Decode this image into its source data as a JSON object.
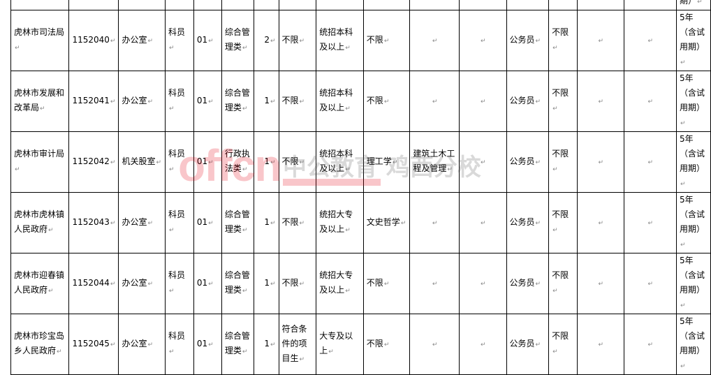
{
  "rows": [
    {
      "dept": "虎林市司法局",
      "code": "1152040",
      "office": "办公室",
      "title": "科员",
      "level": "01",
      "category": "综合管理类",
      "count": "2",
      "target": "不限",
      "education": "统招本科及以上",
      "major_cat": "不限",
      "major": "",
      "other": "",
      "type": "公务员",
      "political": "不限",
      "c1": "",
      "c2": "",
      "service": "5年（含试用期）"
    },
    {
      "dept": "虎林市发展和改革局",
      "code": "1152041",
      "office": "办公室",
      "title": "科员",
      "level": "01",
      "category": "综合管理类",
      "count": "1",
      "target": "不限",
      "education": "统招本科及以上",
      "major_cat": "不限",
      "major": "",
      "other": "",
      "type": "公务员",
      "political": "不限",
      "c1": "",
      "c2": "",
      "service": "5年（含试用期）"
    },
    {
      "dept": "虎林市审计局",
      "code": "1152042",
      "office": "机关股室",
      "title": "科员",
      "level": "01",
      "category": "行政执法类",
      "count": "1",
      "target": "不限",
      "education": "统招本科及以上",
      "major_cat": "理工学",
      "major": "建筑土木工程及管理",
      "other": "",
      "type": "公务员",
      "political": "不限",
      "c1": "",
      "c2": "",
      "service": "5年（含试用期）"
    },
    {
      "dept": "虎林市虎林镇人民政府",
      "code": "1152043",
      "office": "办公室",
      "title": "科员",
      "level": "01",
      "category": "综合管理类",
      "count": "1",
      "target": "不限",
      "education": "统招大专及以上",
      "major_cat": "文史哲学",
      "major": "",
      "other": "",
      "type": "公务员",
      "political": "不限",
      "c1": "",
      "c2": "",
      "service": "5年（含试用期）"
    },
    {
      "dept": "虎林市迎春镇人民政府",
      "code": "1152044",
      "office": "办公室",
      "title": "科员",
      "level": "01",
      "category": "综合管理类",
      "count": "1",
      "target": "不限",
      "education": "统招大专及以上",
      "major_cat": "不限",
      "major": "",
      "other": "",
      "type": "公务员",
      "political": "不限",
      "c1": "",
      "c2": "",
      "service": "5年（含试用期）"
    },
    {
      "dept": "虎林市珍宝岛乡人民政府",
      "code": "1152045",
      "office": "办公室",
      "title": "科员",
      "level": "01",
      "category": "综合管理类",
      "count": "1",
      "target": "符合条件的项目生",
      "education": "大专及以上",
      "major_cat": "不限",
      "major": "",
      "other": "",
      "type": "公务员",
      "political": "不限",
      "c1": "",
      "c2": "",
      "service": "5年（含试用期）"
    }
  ],
  "partial_top_row": {
    "service": "期）"
  },
  "watermark": {
    "logo": "offcn",
    "text": "中公教育 鸡西分校"
  }
}
